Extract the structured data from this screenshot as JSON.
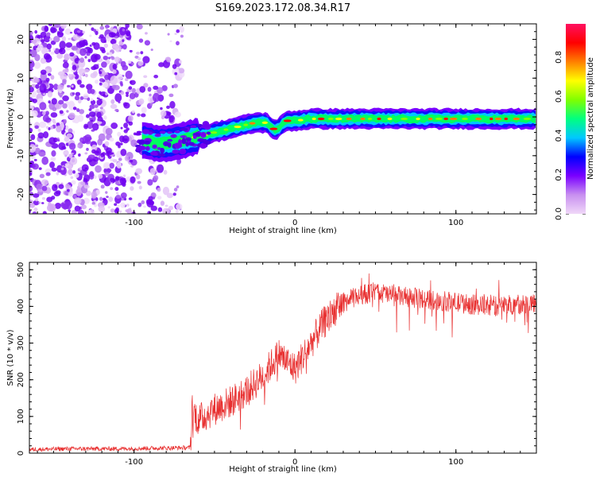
{
  "title": "S169.2023.172.08.34.R17",
  "chart_data": [
    {
      "type": "heatmap",
      "title": "S169.2023.172.08.34.R17",
      "xlabel": "Height of straight line (km)",
      "ylabel": "Frequency (Hz)",
      "xlim": [
        -165,
        150
      ],
      "ylim": [
        -25,
        24
      ],
      "xticks": [
        -100,
        0,
        100
      ],
      "yticks": [
        -20,
        -10,
        0,
        10,
        20
      ],
      "colorbar": {
        "label": "Normalized spectral amplitude",
        "range": [
          0,
          0.97
        ],
        "ticks": [
          0.0,
          0.2,
          0.4,
          0.6,
          0.8
        ],
        "colormap": [
          "#f0d8f8",
          "#c890f0",
          "#7a00ff",
          "#0000ff",
          "#00c8ff",
          "#00ff80",
          "#80ff00",
          "#ffff00",
          "#ff8000",
          "#ff0000",
          "#ff1060"
        ]
      },
      "ridge": {
        "x": [
          -95,
          -85,
          -75,
          -65,
          -55,
          -45,
          -35,
          -25,
          -18,
          -12,
          -5,
          0,
          10,
          20,
          40,
          60,
          80,
          100,
          120,
          150
        ],
        "frequency": [
          -6,
          -7,
          -6.5,
          -5.5,
          -4.5,
          -3.5,
          -2.5,
          -1.5,
          -1.5,
          -3.5,
          -1,
          -1,
          -0.5,
          -0.5,
          -0.5,
          -0.5,
          -0.5,
          -0.5,
          -0.5,
          -0.5
        ]
      }
    },
    {
      "type": "line",
      "xlabel": "Height of straight line (km)",
      "ylabel": "SNR (10 * v/v)",
      "xlim": [
        -165,
        150
      ],
      "ylim": [
        0,
        520
      ],
      "xticks": [
        -100,
        0,
        100
      ],
      "yticks": [
        0,
        100,
        200,
        300,
        400,
        500
      ],
      "color": "#e83030",
      "series": [
        {
          "x": [
            -165,
            -140,
            -110,
            -80,
            -65,
            -64,
            -60,
            -50,
            -40,
            -30,
            -20,
            -10,
            0,
            10,
            20,
            30,
            40,
            50,
            60,
            80,
            100,
            120,
            150
          ],
          "values": [
            10,
            12,
            12,
            14,
            15,
            120,
            90,
            120,
            140,
            170,
            210,
            270,
            230,
            300,
            370,
            410,
            430,
            440,
            430,
            420,
            410,
            400,
            410
          ]
        }
      ]
    }
  ]
}
